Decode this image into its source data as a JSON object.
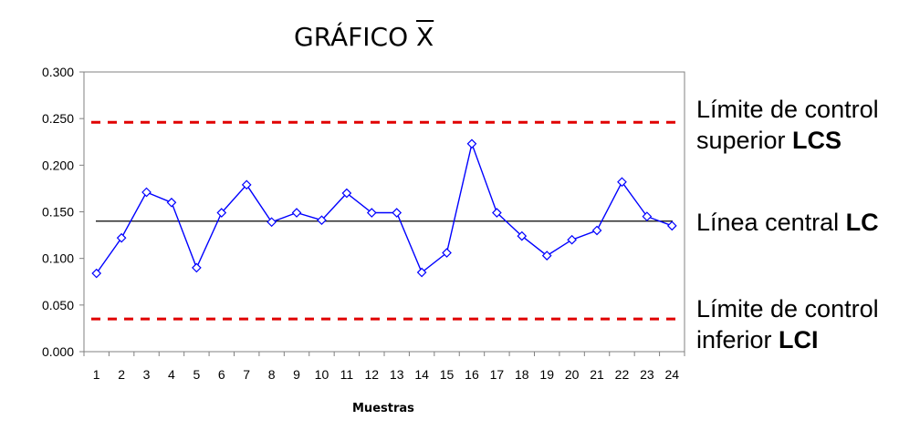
{
  "title": {
    "text": "GRÁFICO ",
    "symbol": "X"
  },
  "annotations": {
    "lcs": {
      "line1": "Límite de control",
      "line2": "superior ",
      "abbr": "LCS"
    },
    "lc": {
      "line1": "Línea central ",
      "abbr": "LC"
    },
    "lci": {
      "line1": "Límite de control",
      "line2": "inferior ",
      "abbr": "LCI"
    }
  },
  "chart_data": {
    "type": "line",
    "title": "GRÁFICO X",
    "xlabel": "Muestras",
    "ylabel": "",
    "x": [
      1,
      2,
      3,
      4,
      5,
      6,
      7,
      8,
      9,
      10,
      11,
      12,
      13,
      14,
      15,
      16,
      17,
      18,
      19,
      20,
      21,
      22,
      23,
      24
    ],
    "ylim": [
      0,
      0.3
    ],
    "yticks": [
      "0.000",
      "0.050",
      "0.100",
      "0.150",
      "0.200",
      "0.250",
      "0.300"
    ],
    "series": [
      {
        "values": [
          0.084,
          0.122,
          0.171,
          0.16,
          0.09,
          0.149,
          0.179,
          0.139,
          0.149,
          0.141,
          0.17,
          0.149,
          0.149,
          0.085,
          0.106,
          0.223,
          0.149,
          0.124,
          0.103,
          0.12,
          0.13,
          0.182,
          0.145,
          0.135
        ],
        "color": "#0000ff",
        "marker": "diamond"
      }
    ],
    "reference_lines": [
      {
        "value": 0.246,
        "style": "dashed",
        "color": "#e00000"
      },
      {
        "value": 0.14,
        "style": "solid",
        "color": "#000000"
      },
      {
        "value": 0.035,
        "style": "dashed",
        "color": "#e00000"
      }
    ],
    "grid": false,
    "legend": "none"
  }
}
